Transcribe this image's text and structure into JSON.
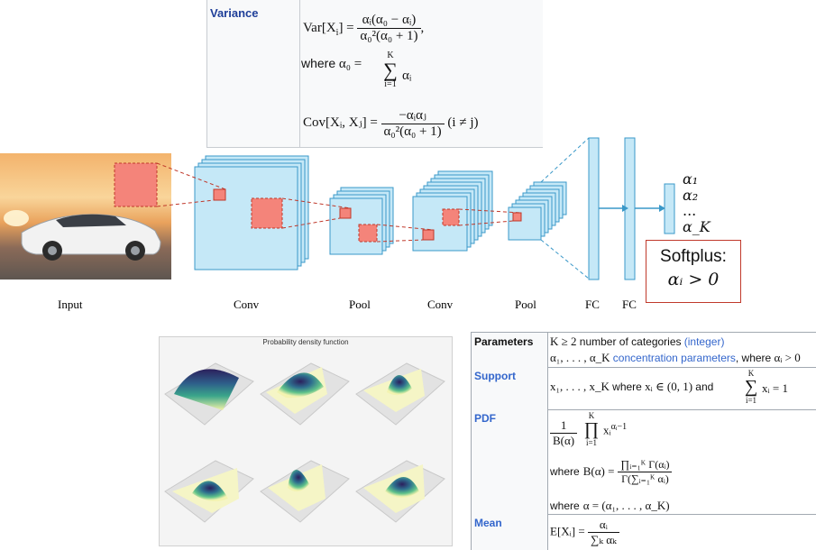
{
  "variance": {
    "label": "Variance",
    "var_lhs": "Var[X",
    "var_lhs_sub": "i",
    "var_lhs_end": "] =",
    "var_num": "αᵢ(α₀ − αᵢ)",
    "var_den": "α₀²(α₀ + 1)",
    "var_comma": ",",
    "where_text": "where",
    "alpha0": "α₀ =",
    "sum_top": "K",
    "sum_symbol": "∑",
    "sum_bottom": "i=1",
    "sum_term": "αᵢ",
    "cov_lhs": "Cov[Xᵢ, Xⱼ] =",
    "cov_num": "−αᵢαⱼ",
    "cov_den": "α₀²(α₀ + 1)",
    "cov_cond": "(i ≠ j)"
  },
  "cnn": {
    "labels": [
      "Input",
      "Conv",
      "Pool",
      "Conv",
      "Pool",
      "FC",
      "FC"
    ],
    "outputs": [
      "α₁",
      "α₂",
      "...",
      "α_K"
    ],
    "softplus_title": "Softplus:",
    "softplus_cond": "αᵢ > 0"
  },
  "pdf_panel": {
    "title": "Probability density function"
  },
  "params": {
    "parameters_label": "Parameters",
    "param_line1_math": "K ≥ 2",
    "param_line1_text": "number of categories",
    "param_line1_link": "(integer)",
    "param_line2_math": "α₁, . . . , α_K",
    "param_line2_link": "concentration parameters",
    "param_line2_text": ", where",
    "param_line2_cond": "αᵢ > 0",
    "support_label": "Support",
    "support_math": "x₁, . . . , x_K",
    "support_where": "where",
    "support_cond": "xᵢ ∈ (0, 1)",
    "support_and": "and",
    "support_sum_top": "K",
    "support_sum_bottom": "i=1",
    "support_sum_term": "xᵢ = 1",
    "pdf_label": "PDF",
    "pdf_frac_num": "1",
    "pdf_frac_den": "B(α)",
    "pdf_prod_top": "K",
    "pdf_prod_bottom": "i=1",
    "pdf_prod_term": "xᵢ",
    "pdf_prod_exp": "αᵢ−1",
    "pdf_where1": "where",
    "pdf_beta_lhs": "B(α) =",
    "pdf_beta_num": "∏ᵢ₌₁ᴷ Γ(αᵢ)",
    "pdf_beta_den": "Γ(∑ᵢ₌₁ᴷ αᵢ)",
    "pdf_where2": "where",
    "pdf_alpha_def": "α = (α₁, . . . , α_K)",
    "mean_label": "Mean",
    "mean_lhs": "E[Xᵢ] =",
    "mean_num": "αᵢ",
    "mean_den": "∑ₖ αₖ"
  },
  "colors": {
    "layer_fill": "#c5e8f7",
    "layer_stroke": "#3a98c8",
    "patch_fill": "#f4847a",
    "patch_stroke": "#c0392b",
    "wiki_label": "#1f3f99",
    "link": "#3366cc"
  }
}
